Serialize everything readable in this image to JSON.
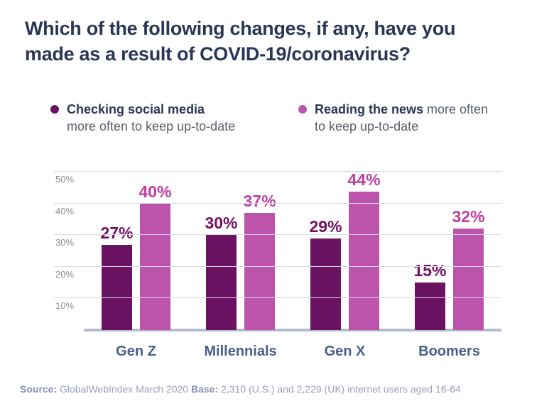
{
  "title": {
    "line1": "Which of the following changes, if any, have you",
    "line2": "made as a result of COVID-19/coronavirus?"
  },
  "legend": [
    {
      "bold": "Checking social media",
      "rest_line2": "more often to keep up-to-date"
    },
    {
      "bold": "Reading the news",
      "rest_line1": " more often",
      "rest_line2": "to keep up-to-date"
    }
  ],
  "colors": {
    "title_text": "#2b3657",
    "legend_regular_text": "#5a5f6a",
    "gridline": "#d6dbe5",
    "axis_baseline": "#b2bcd0",
    "ytick_text": "#8a8d96",
    "category_text": "#495e8c",
    "source_text": "#9aa0bd"
  },
  "chart_data": {
    "type": "bar",
    "title": "Which of the following changes, if any, have you made as a result of COVID-19/coronavirus?",
    "categories": [
      "Gen Z",
      "Millennials",
      "Gen X",
      "Boomers"
    ],
    "series": [
      {
        "name": "Checking social media more often to keep up-to-date",
        "short": "social-media",
        "color": "#6a1362",
        "label_color": "#731063",
        "values": [
          27,
          30,
          29,
          15
        ]
      },
      {
        "name": "Reading the news more often to keep up-to-date",
        "short": "news",
        "color": "#bd54ab",
        "label_color": "#c03da2",
        "values": [
          40,
          37,
          44,
          32
        ]
      }
    ],
    "ylim": [
      0,
      50
    ],
    "yticks": [
      10,
      20,
      30,
      40,
      50
    ],
    "ytick_suffix": "%",
    "value_label_suffix": "%",
    "grid": true,
    "legend_position": "top"
  },
  "footer": {
    "source_label": "Source:",
    "source_text": " GlobalWebIndex March 2020 ",
    "base_label": "Base:",
    "base_text": " 2,310 (U.S.) and 2,229 (UK) internet users aged 16-64"
  }
}
